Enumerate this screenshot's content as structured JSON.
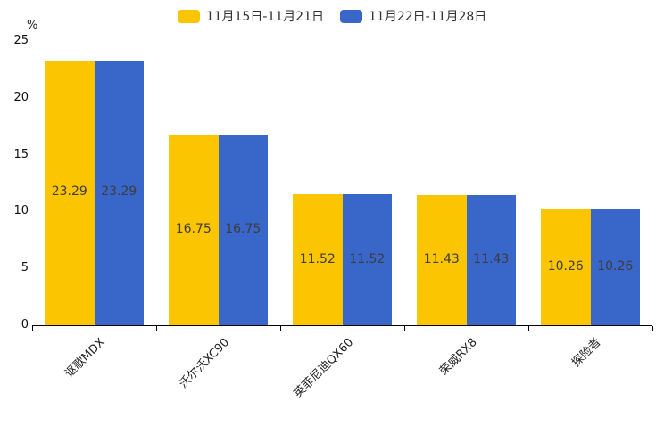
{
  "chart_data": {
    "type": "bar",
    "title": "",
    "unit_label": "%",
    "categories": [
      "讴歌MDX",
      "沃尔沃XC90",
      "英菲尼迪QX60",
      "荣威RX8",
      "探险者"
    ],
    "series": [
      {
        "name": "11月15日-11月21日",
        "color": "#FCC502",
        "values": [
          23.29,
          16.75,
          11.52,
          11.43,
          10.26
        ]
      },
      {
        "name": "11月22日-11月28日",
        "color": "#3966C9",
        "values": [
          23.29,
          16.75,
          11.52,
          11.43,
          10.26
        ]
      }
    ],
    "value_labels": [
      "23.29",
      "16.75",
      "11.52",
      "11.43",
      "10.26"
    ],
    "y_ticks": [
      0,
      5,
      10,
      15,
      20,
      25
    ],
    "ylim": [
      0,
      25
    ],
    "grid": false,
    "legend_position": "top-center",
    "value_label_position": "center-of-bar",
    "axis_color": "#000000"
  }
}
